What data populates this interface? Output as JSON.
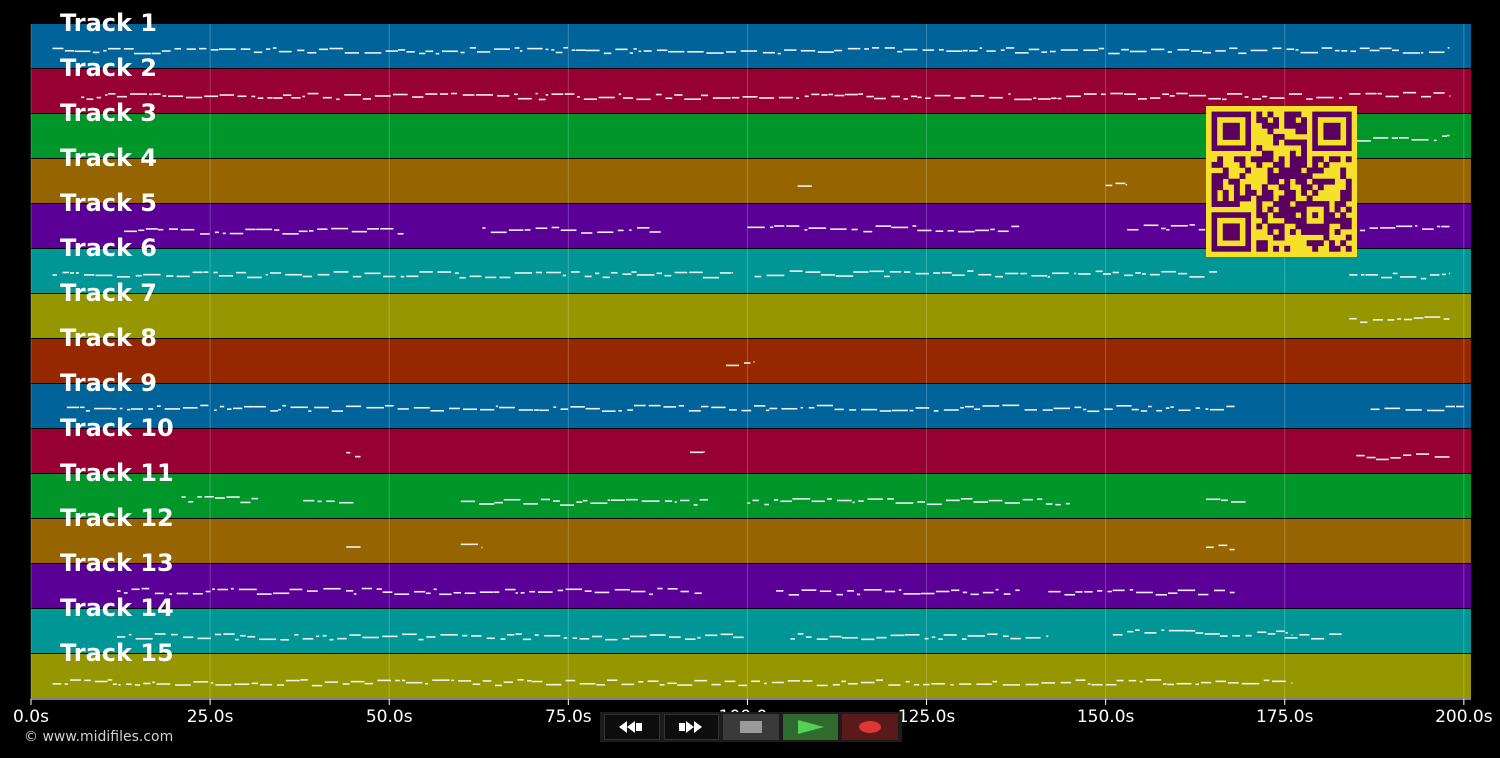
{
  "copyright": "© www.midifiles.com",
  "timeline": {
    "tick_values": [
      0,
      25,
      50,
      75,
      100,
      125,
      150,
      175,
      200
    ],
    "tick_labels": [
      "0.0s",
      "25.0s",
      "50.0s",
      "75.0s",
      "100.0s",
      "125.0s",
      "150.0s",
      "175.0s",
      "200.0s"
    ],
    "duration_seconds": 201
  },
  "tracks": [
    {
      "label": "Track 1",
      "color": "#00649b"
    },
    {
      "label": "Track 2",
      "color": "#960032"
    },
    {
      "label": "Track 3",
      "color": "#00962a"
    },
    {
      "label": "Track 4",
      "color": "#966400"
    },
    {
      "label": "Track 5",
      "color": "#5a0096"
    },
    {
      "label": "Track 6",
      "color": "#009696"
    },
    {
      "label": "Track 7",
      "color": "#969600"
    },
    {
      "label": "Track 8",
      "color": "#962800"
    },
    {
      "label": "Track 9",
      "color": "#00649b"
    },
    {
      "label": "Track 10",
      "color": "#960032"
    },
    {
      "label": "Track 11",
      "color": "#00962a"
    },
    {
      "label": "Track 12",
      "color": "#966400"
    },
    {
      "label": "Track 13",
      "color": "#5a0096"
    },
    {
      "label": "Track 14",
      "color": "#009696"
    },
    {
      "label": "Track 15",
      "color": "#969600"
    }
  ],
  "transport": {
    "rewind": "rewind-icon",
    "fast_forward": "fast-forward-icon",
    "stop": "stop-icon",
    "play": "play-icon",
    "record": "record-icon"
  },
  "qr": {
    "icon": "qr-code-icon",
    "color": "#f5e12a",
    "fg": "#5a0060"
  }
}
